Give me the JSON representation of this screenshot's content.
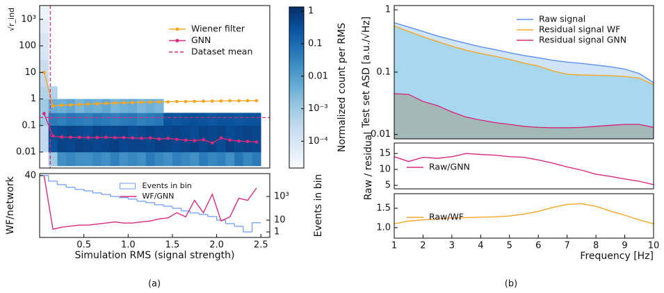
{
  "chart_data": [
    {
      "type": "heatmap_line",
      "ylabel": "√r_ind",
      "xlim": [
        0,
        2.6
      ],
      "ylim": [
        0.0025,
        3300
      ],
      "ylog": true,
      "yticks": [
        0.01,
        0.1,
        1,
        10,
        100,
        {
          "value": 1000,
          "label": "10³"
        }
      ],
      "legend": "upper right",
      "heatmap": {
        "colormap": "Blues",
        "xbins": [
          0,
          0.1,
          0.2,
          0.3,
          0.4,
          0.5,
          0.6,
          0.7,
          0.8,
          0.9,
          1,
          1.1,
          1.2,
          1.3,
          1.4,
          1.5,
          1.6,
          1.7,
          1.8,
          1.9,
          2,
          2.1,
          2.2,
          2.3,
          2.4,
          2.5
        ],
        "ybins": [
          0.003,
          0.01,
          0.03,
          0.1,
          0.3,
          1,
          3,
          10,
          30,
          100,
          300,
          1000,
          3000
        ],
        "z": [
          [
            null,
            0.001,
            0.02,
            0.03,
            0.02,
            0.02,
            0.03,
            0.02,
            0.04,
            0.02,
            0.03,
            0.02,
            0.05,
            0.03,
            0.02,
            0.04,
            0.03,
            0.02,
            0.05,
            0.03,
            0.04,
            0.02,
            0.06,
            0.03,
            0.05
          ],
          [
            0.0003,
            0.3,
            0.6,
            0.5,
            0.7,
            0.6,
            0.5,
            0.6,
            0.7,
            0.5,
            0.6,
            0.6,
            0.5,
            0.7,
            0.6,
            0.5,
            0.6,
            0.7,
            0.5,
            0.6,
            0.4,
            0.7,
            0.5,
            0.6,
            0.5
          ],
          [
            0.0003,
            0.4,
            0.5,
            0.6,
            0.5,
            0.4,
            0.6,
            0.5,
            0.5,
            0.6,
            0.4,
            0.5,
            0.6,
            0.5,
            0.5,
            0.6,
            0.5,
            0.4,
            0.6,
            0.5,
            0.6,
            0.4,
            0.5,
            0.6,
            0.5
          ],
          [
            0.001,
            0.05,
            0.04,
            0.06,
            0.05,
            0.04,
            0.06,
            0.05,
            0.04,
            0.05,
            0.06,
            0.04,
            0.05,
            0.06,
            0.3,
            0.25,
            0.3,
            0.35,
            0.3,
            0.25,
            0.3,
            0.3,
            0.25,
            0.3,
            0.3
          ],
          [
            0.001,
            0.005,
            0.004,
            0.006,
            0.003,
            0.005,
            0.004,
            0.006,
            0.003,
            0.004,
            0.005,
            0.003,
            0.004,
            0.003,
            null,
            null,
            null,
            null,
            null,
            null,
            null,
            null,
            null,
            null,
            null
          ],
          [
            0.0005,
            0.0005,
            null,
            null,
            null,
            null,
            null,
            null,
            null,
            null,
            null,
            null,
            null,
            null,
            null,
            null,
            null,
            null,
            null,
            null,
            null,
            null,
            null,
            null,
            null
          ],
          [
            0.0003,
            null,
            null,
            null,
            null,
            null,
            null,
            null,
            null,
            null,
            null,
            null,
            null,
            null,
            null,
            null,
            null,
            null,
            null,
            null,
            null,
            null,
            null,
            null,
            null
          ],
          [
            0.0002,
            null,
            null,
            null,
            null,
            null,
            null,
            null,
            null,
            null,
            null,
            null,
            null,
            null,
            null,
            null,
            null,
            null,
            null,
            null,
            null,
            null,
            null,
            null,
            null
          ],
          [
            0.0001,
            null,
            null,
            null,
            null,
            null,
            null,
            null,
            null,
            null,
            null,
            null,
            null,
            null,
            null,
            null,
            null,
            null,
            null,
            null,
            null,
            null,
            null,
            null,
            null
          ],
          [
            0.0001,
            null,
            null,
            null,
            null,
            null,
            null,
            null,
            null,
            null,
            null,
            null,
            null,
            null,
            null,
            null,
            null,
            null,
            null,
            null,
            null,
            null,
            null,
            null,
            null
          ],
          [
            5e-05,
            null,
            null,
            null,
            null,
            null,
            null,
            null,
            null,
            null,
            null,
            null,
            null,
            null,
            null,
            null,
            null,
            null,
            null,
            null,
            null,
            null,
            null,
            null,
            null
          ],
          [
            3e-05,
            null,
            null,
            null,
            null,
            null,
            null,
            null,
            null,
            null,
            null,
            null,
            null,
            null,
            null,
            null,
            null,
            null,
            null,
            null,
            null,
            null,
            null,
            null,
            null
          ]
        ]
      },
      "colorbar": {
        "label": "Normalized count per RMS",
        "lim": [
          1.5e-05,
          1.35
        ],
        "ticks": [
          1,
          0.1,
          0.01,
          {
            "value": 0.001,
            "label": "10⁻³"
          },
          {
            "value": 0.0001,
            "label": "10⁻⁴"
          }
        ]
      },
      "series": [
        {
          "name": "Wiener filter",
          "color": "#f5a623",
          "marker": "o",
          "x": [
            0.05,
            0.15,
            0.25,
            0.35,
            0.45,
            0.55,
            0.65,
            0.75,
            0.85,
            0.95,
            1.05,
            1.15,
            1.25,
            1.35,
            1.45,
            1.55,
            1.65,
            1.75,
            1.85,
            1.95,
            2.05,
            2.15,
            2.25,
            2.35,
            2.45
          ],
          "values": [
            10,
            0.55,
            0.58,
            0.6,
            0.62,
            0.64,
            0.66,
            0.68,
            0.7,
            0.72,
            0.73,
            0.75,
            0.76,
            0.77,
            0.78,
            0.8,
            0.8,
            0.81,
            0.82,
            0.83,
            0.84,
            0.85,
            0.85,
            0.86,
            0.86
          ]
        },
        {
          "name": "GNN",
          "color": "#d62a7e",
          "marker": "o",
          "x": [
            0.05,
            0.15,
            0.25,
            0.35,
            0.45,
            0.55,
            0.65,
            0.75,
            0.85,
            0.95,
            1.05,
            1.15,
            1.25,
            1.35,
            1.45,
            1.55,
            1.65,
            1.75,
            1.85,
            1.95,
            2.05,
            2.15,
            2.25,
            2.35,
            2.45
          ],
          "values": [
            0.28,
            0.04,
            0.037,
            0.036,
            0.036,
            0.035,
            0.035,
            0.036,
            0.035,
            0.035,
            0.034,
            0.033,
            0.034,
            0.031,
            0.033,
            0.03,
            0.028,
            0.027,
            0.029,
            0.022,
            0.034,
            0.028,
            0.026,
            0.025,
            0.024
          ]
        },
        {
          "name": "Dataset mean",
          "color": "#d62a7e",
          "dash": true,
          "x": 0.12,
          "y": 0.2
        }
      ]
    },
    {
      "type": "step_line",
      "xlabel": "Simulation RMS (signal strength)",
      "ylabel": "WF/network",
      "y2label": "Events in bin",
      "xlim": [
        0,
        2.6
      ],
      "ylim": [
        10,
        41
      ],
      "yticks": [
        40
      ],
      "y2lim": [
        0.34,
        87000
      ],
      "y2log": true,
      "y2ticks": [
        1,
        10,
        {
          "value": 1000,
          "label": "10³"
        }
      ],
      "xticks": [
        0.5,
        {
          "value": 1,
          "label": "1.0"
        },
        1.5,
        {
          "value": 2,
          "label": "2.0"
        },
        2.5
      ],
      "legend": "upper center",
      "series": [
        {
          "name": "Events in bin",
          "color": "#6f9ef0",
          "axis": "y2",
          "bins": [
            0,
            0.1,
            0.2,
            0.3,
            0.4,
            0.5,
            0.6,
            0.7,
            0.8,
            0.9,
            1,
            1.1,
            1.2,
            1.3,
            1.4,
            1.5,
            1.6,
            1.7,
            1.8,
            1.9,
            2,
            2.1,
            2.2,
            2.3,
            2.4,
            2.5
          ],
          "values": [
            60000,
            20000,
            10000,
            6000,
            4000,
            3000,
            2000,
            1500,
            1000,
            800,
            600,
            400,
            300,
            200,
            150,
            100,
            60,
            40,
            30,
            20,
            10,
            5,
            3,
            1,
            6
          ]
        },
        {
          "name": "WF/GNN",
          "color": "#d62a7e",
          "x": [
            0.05,
            0.15,
            0.25,
            0.35,
            0.45,
            0.55,
            0.65,
            0.75,
            0.85,
            0.95,
            1.05,
            1.15,
            1.25,
            1.35,
            1.45,
            1.55,
            1.65,
            1.75,
            1.85,
            1.95,
            2.05,
            2.15,
            2.25,
            2.35,
            2.45
          ],
          "values": [
            40,
            14,
            15,
            15.5,
            16,
            16,
            16.5,
            17,
            17.5,
            17,
            17,
            17.5,
            18,
            19,
            19.5,
            22,
            20,
            28,
            22,
            31,
            18,
            20,
            29,
            28,
            34
          ]
        }
      ]
    },
    {
      "type": "area",
      "ylabel": "Test set ASD [a.u./√Hz]",
      "x": [
        1,
        1.5,
        2,
        2.5,
        3,
        3.5,
        4,
        4.5,
        5,
        5.5,
        6,
        6.5,
        7,
        7.5,
        8,
        8.5,
        9,
        9.5,
        10
      ],
      "xlim": [
        1,
        10
      ],
      "ylim": [
        0.0085,
        1.17
      ],
      "ylog": true,
      "yticks": [
        0.01,
        0.1,
        1
      ],
      "legend": "upper right",
      "series": [
        {
          "name": "Raw signal",
          "color": "#5b8ff0",
          "fill": "#cfe4f6",
          "values": [
            0.62,
            0.53,
            0.45,
            0.38,
            0.33,
            0.29,
            0.255,
            0.23,
            0.205,
            0.185,
            0.17,
            0.155,
            0.145,
            0.138,
            0.13,
            0.122,
            0.112,
            0.095,
            0.068
          ]
        },
        {
          "name": "Residual signal WF",
          "color": "#f5a623",
          "fill": "#a8d8ee",
          "values": [
            0.55,
            0.45,
            0.37,
            0.31,
            0.26,
            0.225,
            0.2,
            0.18,
            0.16,
            0.14,
            0.125,
            0.105,
            0.092,
            0.09,
            0.089,
            0.088,
            0.085,
            0.08,
            0.063
          ]
        },
        {
          "name": "Residual signal GNN",
          "color": "#d62a7e",
          "fill": "#a3b9b8",
          "values": [
            0.045,
            0.044,
            0.034,
            0.029,
            0.023,
            0.019,
            0.017,
            0.0155,
            0.0145,
            0.0135,
            0.013,
            0.0128,
            0.0128,
            0.013,
            0.0135,
            0.014,
            0.0145,
            0.0145,
            0.013
          ]
        }
      ]
    },
    {
      "type": "line",
      "ylabel": "Raw / residual",
      "x": [
        1,
        1.5,
        2,
        2.5,
        3,
        3.5,
        4,
        4.5,
        5,
        5.5,
        6,
        6.5,
        7,
        7.5,
        8,
        8.5,
        9,
        9.5,
        10
      ],
      "xlim": [
        1,
        10
      ],
      "ylim": [
        3.9,
        18.3
      ],
      "yticks": [
        5,
        10,
        15
      ],
      "legend": "center left",
      "series": [
        {
          "name": "Raw/GNN",
          "color": "#d62a7e",
          "values": [
            14,
            12.5,
            13.8,
            13.5,
            14,
            15,
            14.7,
            14.5,
            14,
            13.8,
            13,
            12,
            10.8,
            9.8,
            8.5,
            7.8,
            7,
            6.3,
            5.2
          ]
        }
      ]
    },
    {
      "type": "line",
      "xlabel": "Frequency [Hz]",
      "x": [
        1,
        1.5,
        2,
        2.5,
        3,
        3.5,
        4,
        4.5,
        5,
        5.5,
        6,
        6.5,
        7,
        7.5,
        8,
        8.5,
        9,
        9.5,
        10
      ],
      "xlim": [
        1,
        10
      ],
      "ylim": [
        0.73,
        1.875
      ],
      "yticks": [
        {
          "value": 1,
          "label": "1.0"
        },
        1.5
      ],
      "xticks": [
        1,
        2,
        3,
        4,
        5,
        6,
        7,
        8,
        9,
        10
      ],
      "legend": "center left",
      "series": [
        {
          "name": "Raw/WF",
          "color": "#f5a623",
          "values": [
            1.1,
            1.17,
            1.2,
            1.23,
            1.25,
            1.26,
            1.27,
            1.28,
            1.3,
            1.35,
            1.42,
            1.52,
            1.6,
            1.62,
            1.55,
            1.43,
            1.32,
            1.2,
            1.1
          ]
        }
      ]
    }
  ],
  "captions": [
    "(a)",
    "(b)"
  ]
}
